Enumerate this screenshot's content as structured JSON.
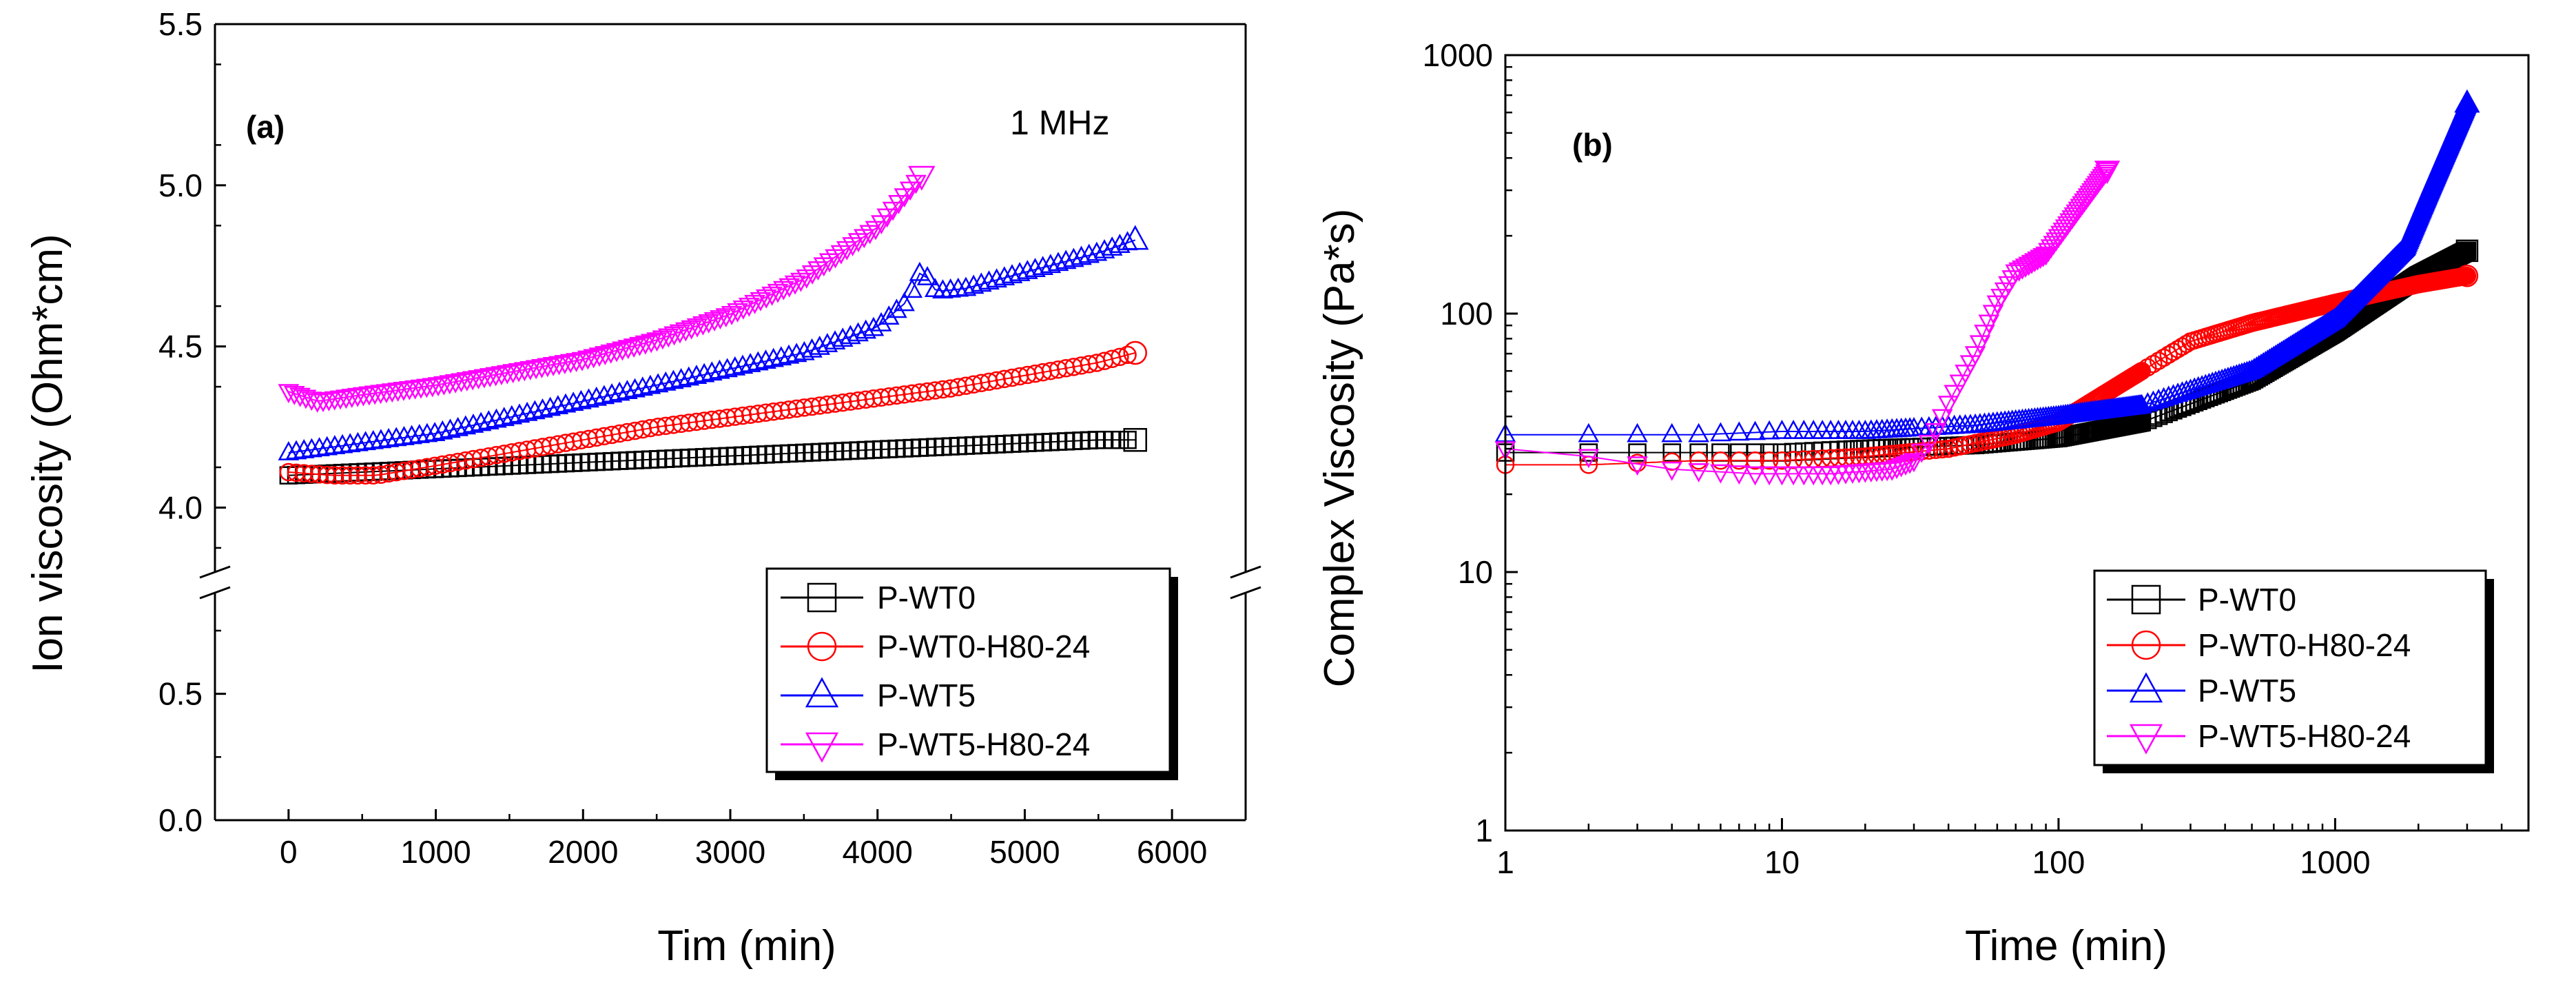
{
  "chart_data": [
    {
      "type": "scatter",
      "panel_label": "(a)",
      "annotation": "1 MHz",
      "xlabel": "Tim (min)",
      "ylabel": "Ion viscosity (Ohm*cm)",
      "xlim": [
        -500,
        6500
      ],
      "xticks": [
        "0",
        "1000",
        "2000",
        "3000",
        "4000",
        "5000",
        "6000"
      ],
      "xtick_values": [
        0,
        1000,
        2000,
        3000,
        4000,
        5000,
        6000
      ],
      "y_broken": true,
      "ylim_lower": [
        0.0,
        0.9
      ],
      "ylim_upper": [
        3.8,
        5.5
      ],
      "yticks_lower": [
        "0.0",
        "0.5"
      ],
      "yticks_lower_values": [
        0.0,
        0.5
      ],
      "yticks_upper": [
        "4.0",
        "4.5",
        "5.0",
        "5.5"
      ],
      "yticks_upper_values": [
        4.0,
        4.5,
        5.0,
        5.5
      ],
      "legend_position": "bottom-right",
      "series": [
        {
          "name": "P-WT0",
          "color": "#000000",
          "marker": "square",
          "points": [
            [
              0,
              4.1
            ],
            [
              500,
              4.11
            ],
            [
              1000,
              4.12
            ],
            [
              1500,
              4.13
            ],
            [
              2000,
              4.14
            ],
            [
              2500,
              4.15
            ],
            [
              3000,
              4.16
            ],
            [
              3500,
              4.17
            ],
            [
              4000,
              4.18
            ],
            [
              4500,
              4.19
            ],
            [
              5000,
              4.2
            ],
            [
              5500,
              4.21
            ],
            [
              5750,
              4.21
            ]
          ]
        },
        {
          "name": "P-WT0-H80-24",
          "color": "#ff0000",
          "marker": "circle",
          "points": [
            [
              0,
              4.11
            ],
            [
              300,
              4.1
            ],
            [
              600,
              4.1
            ],
            [
              1000,
              4.13
            ],
            [
              1500,
              4.17
            ],
            [
              2000,
              4.21
            ],
            [
              2500,
              4.25
            ],
            [
              3000,
              4.28
            ],
            [
              3500,
              4.31
            ],
            [
              4000,
              4.34
            ],
            [
              4500,
              4.37
            ],
            [
              5000,
              4.41
            ],
            [
              5500,
              4.45
            ],
            [
              5750,
              4.48
            ]
          ]
        },
        {
          "name": "P-WT5",
          "color": "#0000ff",
          "marker": "triangle-up",
          "points": [
            [
              0,
              4.17
            ],
            [
              500,
              4.2
            ],
            [
              1000,
              4.23
            ],
            [
              1500,
              4.28
            ],
            [
              2000,
              4.33
            ],
            [
              2500,
              4.38
            ],
            [
              3000,
              4.43
            ],
            [
              3500,
              4.48
            ],
            [
              4000,
              4.56
            ],
            [
              4200,
              4.64
            ],
            [
              4300,
              4.74
            ],
            [
              4400,
              4.67
            ],
            [
              4600,
              4.68
            ],
            [
              5000,
              4.73
            ],
            [
              5500,
              4.79
            ],
            [
              5750,
              4.83
            ]
          ]
        },
        {
          "name": "P-WT5-H80-24",
          "color": "#ff00ff",
          "marker": "triangle-down",
          "points": [
            [
              0,
              4.36
            ],
            [
              200,
              4.33
            ],
            [
              500,
              4.35
            ],
            [
              1000,
              4.38
            ],
            [
              1500,
              4.42
            ],
            [
              2000,
              4.46
            ],
            [
              2500,
              4.52
            ],
            [
              3000,
              4.6
            ],
            [
              3500,
              4.71
            ],
            [
              4000,
              4.87
            ],
            [
              4300,
              5.03
            ]
          ]
        }
      ]
    },
    {
      "type": "scatter",
      "panel_label": "(b)",
      "xlabel": "Time (min)",
      "ylabel": "Complex Viscosity (Pa*s)",
      "xscale": "log",
      "yscale": "log",
      "xlim": [
        1,
        5000
      ],
      "ylim": [
        1,
        1000
      ],
      "xticks": [
        "1",
        "10",
        "100",
        "1000"
      ],
      "xtick_values": [
        1,
        10,
        100,
        1000
      ],
      "yticks": [
        "1",
        "10",
        "100",
        "1000"
      ],
      "ytick_values": [
        1,
        10,
        100,
        1000
      ],
      "legend_position": "bottom-right",
      "series": [
        {
          "name": "P-WT0",
          "color": "#000000",
          "marker": "square",
          "points": [
            [
              1,
              29
            ],
            [
              2,
              29
            ],
            [
              5,
              29
            ],
            [
              10,
              29
            ],
            [
              20,
              30
            ],
            [
              50,
              31
            ],
            [
              100,
              33
            ],
            [
              200,
              38
            ],
            [
              500,
              55
            ],
            [
              1000,
              85
            ],
            [
              2000,
              140
            ],
            [
              3000,
              175
            ]
          ]
        },
        {
          "name": "P-WT0-H80-24",
          "color": "#ff0000",
          "marker": "circle",
          "points": [
            [
              1,
              26
            ],
            [
              2,
              26
            ],
            [
              5,
              27
            ],
            [
              10,
              27
            ],
            [
              20,
              28
            ],
            [
              40,
              30
            ],
            [
              70,
              34
            ],
            [
              100,
              38
            ],
            [
              200,
              60
            ],
            [
              300,
              78
            ],
            [
              500,
              92
            ],
            [
              1000,
              110
            ],
            [
              2000,
              130
            ],
            [
              3000,
              140
            ]
          ]
        },
        {
          "name": "P-WT5",
          "color": "#0000ff",
          "marker": "triangle-up",
          "points": [
            [
              1,
              34
            ],
            [
              2,
              34
            ],
            [
              5,
              34
            ],
            [
              10,
              35
            ],
            [
              20,
              35
            ],
            [
              50,
              37
            ],
            [
              100,
              40
            ],
            [
              200,
              44
            ],
            [
              500,
              60
            ],
            [
              1000,
              95
            ],
            [
              1800,
              180
            ],
            [
              2200,
              300
            ],
            [
              3000,
              650
            ]
          ]
        },
        {
          "name": "P-WT5-H80-24",
          "color": "#ff00ff",
          "marker": "triangle-down",
          "points": [
            [
              1,
              30
            ],
            [
              2,
              28
            ],
            [
              4,
              25
            ],
            [
              8,
              24
            ],
            [
              15,
              24
            ],
            [
              25,
              25
            ],
            [
              30,
              27
            ],
            [
              35,
              33
            ],
            [
              40,
              45
            ],
            [
              50,
              70
            ],
            [
              60,
              110
            ],
            [
              70,
              145
            ],
            [
              90,
              170
            ],
            [
              120,
              260
            ],
            [
              150,
              360
            ]
          ]
        }
      ]
    }
  ]
}
